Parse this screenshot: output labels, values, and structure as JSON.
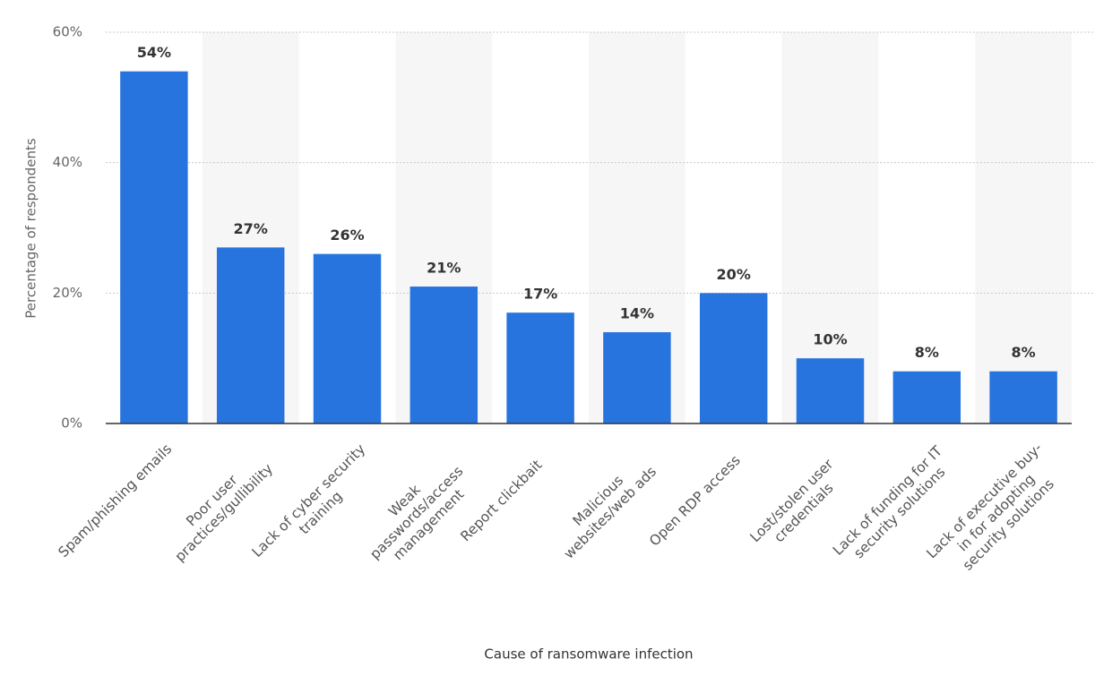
{
  "chart_data": {
    "type": "bar",
    "x_label": "Cause of ransomware infection",
    "y_label": "Percentage of respondents",
    "categories": [
      "Spam/phishing emails",
      "Poor user practices/gullibility",
      "Lack of cyber security training",
      "Weak passwords/access management",
      "Report clickbait",
      "Malicious websites/web ads",
      "Open RDP access",
      "Lost/stolen user credentials",
      "Lack of funding for IT security solutions",
      "Lack of executive buy-in for adopting security solutions"
    ],
    "values": [
      54,
      27,
      26,
      21,
      17,
      14,
      20,
      10,
      8,
      8
    ],
    "value_labels": [
      "54%",
      "27%",
      "26%",
      "21%",
      "17%",
      "14%",
      "20%",
      "10%",
      "8%",
      "8%"
    ],
    "color": "#2874df",
    "ylim": [
      0,
      60
    ],
    "yticks": [
      {
        "value": 0,
        "label": "0%"
      },
      {
        "value": 20,
        "label": "20%"
      },
      {
        "value": 40,
        "label": "40%"
      },
      {
        "value": 60,
        "label": "60%"
      }
    ],
    "grid": true
  }
}
